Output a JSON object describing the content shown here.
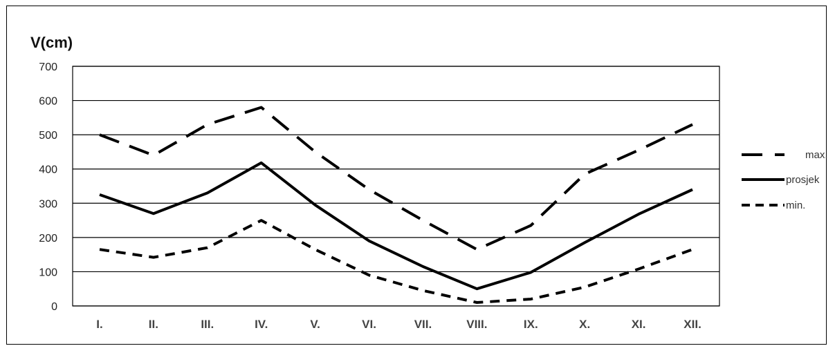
{
  "chart_data": {
    "type": "line",
    "title": "",
    "xlabel": "",
    "ylabel": "V(cm)",
    "ylim": [
      0,
      700
    ],
    "yticks": [
      0,
      100,
      200,
      300,
      400,
      500,
      600,
      700
    ],
    "categories": [
      "I.",
      "II.",
      "III.",
      "IV.",
      "V.",
      "VI.",
      "VII.",
      "VIII.",
      "IX.",
      "X.",
      "XI.",
      "XII."
    ],
    "grid": "horizontal",
    "legend_position": "right",
    "series": [
      {
        "name": "max.",
        "style": "long-dash",
        "color": "#000000",
        "values": [
          500,
          440,
          530,
          580,
          450,
          340,
          250,
          165,
          235,
          385,
          455,
          530
        ]
      },
      {
        "name": "prosjek",
        "style": "solid",
        "color": "#000000",
        "values": [
          325,
          270,
          330,
          418,
          295,
          190,
          115,
          50,
          98,
          185,
          268,
          340
        ]
      },
      {
        "name": "min.",
        "style": "short-dash",
        "color": "#000000",
        "values": [
          165,
          142,
          170,
          250,
          165,
          90,
          45,
          10,
          20,
          55,
          108,
          165
        ]
      }
    ]
  }
}
